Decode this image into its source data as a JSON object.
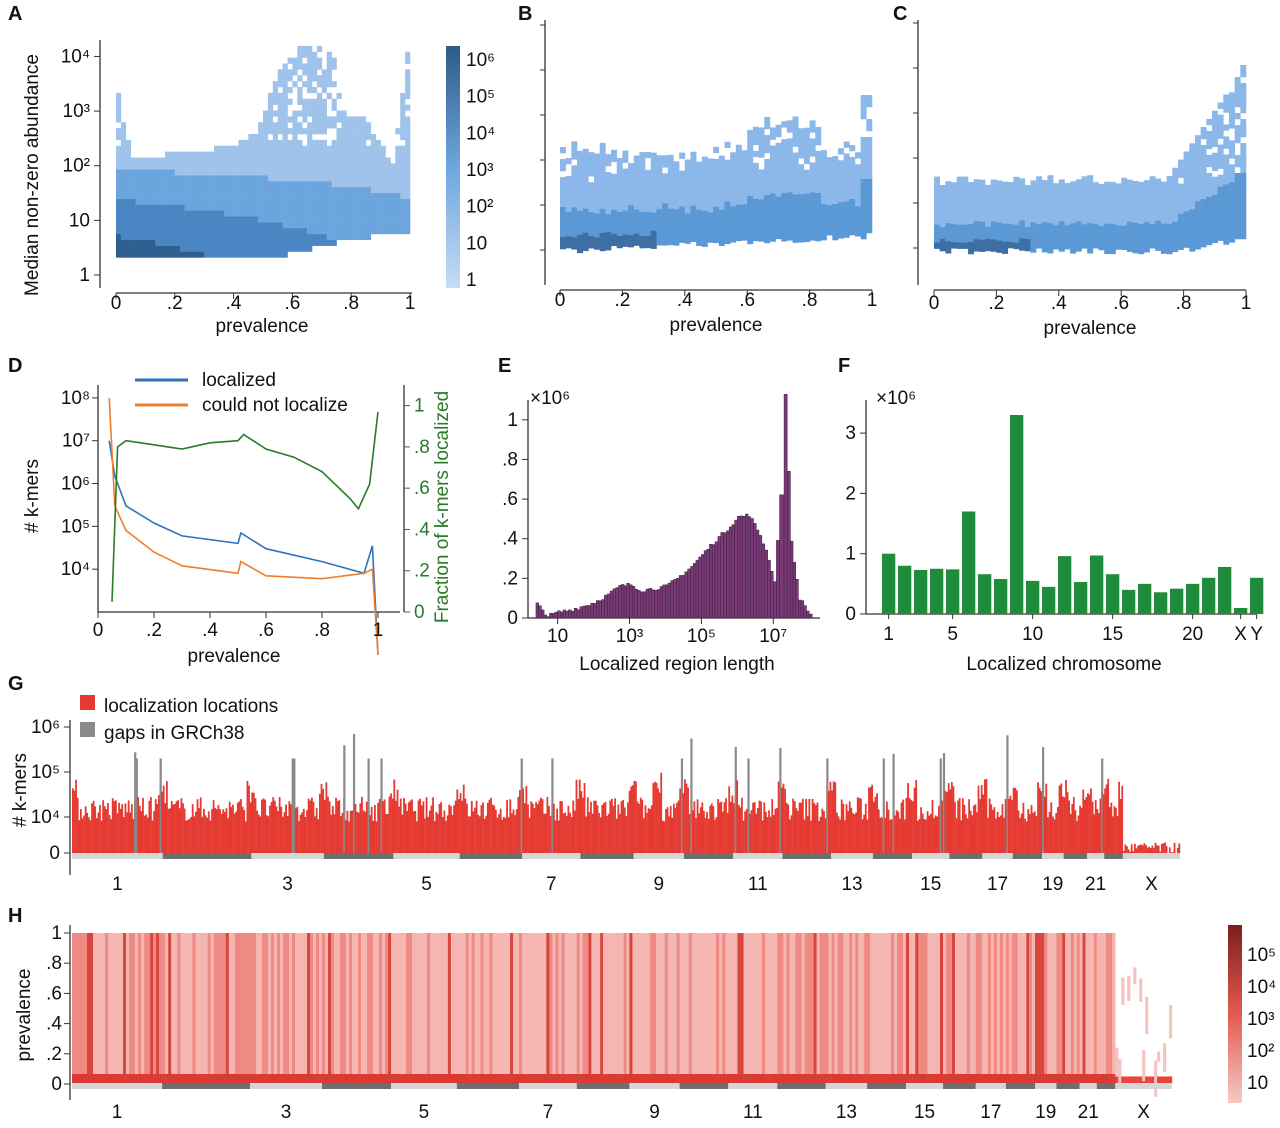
{
  "panels": {
    "A": "A",
    "B": "B",
    "C": "C",
    "D": "D",
    "E": "E",
    "F": "F",
    "G": "G",
    "H": "H"
  },
  "colors": {
    "blue_light": "#a9c8ec",
    "blue_mid": "#4f93d6",
    "blue_dark": "#2e5d8c",
    "localized": "#2f73b8",
    "could_not_localize": "#ef7f2c",
    "fraction": "#2a7a2a",
    "histogram": "#7a3a78",
    "chromosome_bar": "#1f8b3b",
    "red": "#e53a31",
    "gap_gray": "#8a8a8a"
  },
  "chart_data": [
    {
      "panel": "A",
      "type": "heatmap",
      "xlabel": "prevalence",
      "ylabel": "Median non-zero abundance",
      "xlim": [
        0,
        1
      ],
      "ylim": [
        1,
        20000
      ],
      "yscale": "log",
      "xticks": [
        "0",
        ".2",
        ".4",
        ".6",
        ".8",
        "1"
      ],
      "yticks": [
        "1",
        "10",
        "10²",
        "10³",
        "10⁴"
      ],
      "upper_envelope": [
        [
          0,
          2000
        ],
        [
          0.05,
          120
        ],
        [
          0.2,
          150
        ],
        [
          0.4,
          200
        ],
        [
          0.5,
          600
        ],
        [
          0.52,
          2000
        ],
        [
          0.58,
          8000
        ],
        [
          0.62,
          12000
        ],
        [
          0.68,
          14000
        ],
        [
          0.75,
          9000
        ],
        [
          0.78,
          800
        ],
        [
          0.85,
          700
        ],
        [
          0.95,
          100
        ],
        [
          1,
          10000
        ]
      ],
      "colorbar": {
        "ticks": [
          "10⁶",
          "10⁵",
          "10⁴",
          "10³",
          "10²",
          "10",
          "1"
        ],
        "scale": "log"
      }
    },
    {
      "panel": "B",
      "type": "heatmap",
      "xlabel": "prevalence",
      "xlim": [
        0,
        1
      ],
      "yscale": "log",
      "xticks": [
        "0",
        ".2",
        ".4",
        ".6",
        ".8",
        "1"
      ]
    },
    {
      "panel": "C",
      "type": "heatmap",
      "xlabel": "prevalence",
      "xlim": [
        0,
        1
      ],
      "yscale": "log",
      "xticks": [
        "0",
        ".2",
        ".4",
        ".6",
        ".8",
        "1"
      ]
    },
    {
      "panel": "D",
      "type": "line",
      "xlabel": "prevalence",
      "ylabel": "# k-mers",
      "ylabel2": "Fraction of k-mers localized",
      "yscale": "log",
      "ylim": [
        1000,
        200000000
      ],
      "y2lim": [
        0,
        1.1
      ],
      "xticks": [
        "0",
        ".2",
        ".4",
        ".6",
        ".8",
        "1"
      ],
      "yticks": [
        "10⁴",
        "10⁵",
        "10⁶",
        "10⁷",
        "10⁸"
      ],
      "y2ticks": [
        "0",
        ".2",
        ".4",
        ".6",
        ".8",
        "1"
      ],
      "legend_placement": "top",
      "series": [
        {
          "name": "localized",
          "x": [
            0.04,
            0.06,
            0.1,
            0.2,
            0.3,
            0.5,
            0.51,
            0.6,
            0.8,
            0.95,
            0.98,
            1.0
          ],
          "y": [
            10000000,
            1500000,
            300000,
            120000,
            60000,
            40000,
            70000,
            30000,
            15000,
            8000,
            35000,
            100
          ]
        },
        {
          "name": "could not localize",
          "x": [
            0.04,
            0.06,
            0.1,
            0.2,
            0.3,
            0.5,
            0.51,
            0.6,
            0.8,
            0.95,
            0.98,
            1.0
          ],
          "y": [
            100000000,
            300000,
            80000,
            25000,
            12000,
            8000,
            15000,
            7000,
            6000,
            8000,
            10000,
            100
          ]
        },
        {
          "name": "fraction localized",
          "axis": "right",
          "x": [
            0.05,
            0.07,
            0.1,
            0.2,
            0.3,
            0.4,
            0.5,
            0.52,
            0.6,
            0.7,
            0.8,
            0.9,
            0.93,
            0.97,
            1.0
          ],
          "y": [
            0.05,
            0.8,
            0.83,
            0.81,
            0.79,
            0.82,
            0.83,
            0.86,
            0.79,
            0.75,
            0.68,
            0.55,
            0.5,
            0.62,
            0.97
          ]
        }
      ]
    },
    {
      "panel": "E",
      "type": "bar",
      "xlabel": "Localized region length",
      "multiplier": "×10⁶",
      "xscale": "log",
      "xlim": [
        1.5,
        200000000
      ],
      "ylim": [
        0,
        1.1
      ],
      "xticks": [
        "10",
        "10³",
        "10⁵",
        "10⁷"
      ],
      "yticks": [
        "0",
        ".2",
        ".4",
        ".6",
        ".8",
        "1"
      ],
      "bins": [
        [
          2.5,
          0.07
        ],
        [
          5,
          0.01
        ],
        [
          10,
          0.03
        ],
        [
          20,
          0.04
        ],
        [
          50,
          0.06
        ],
        [
          100,
          0.08
        ],
        [
          200,
          0.11
        ],
        [
          500,
          0.16
        ],
        [
          1000,
          0.17
        ],
        [
          2000,
          0.14
        ],
        [
          5000,
          0.15
        ],
        [
          10000,
          0.16
        ],
        [
          20000,
          0.2
        ],
        [
          50000,
          0.26
        ],
        [
          100000,
          0.32
        ],
        [
          200000,
          0.38
        ],
        [
          500000,
          0.45
        ],
        [
          1000000,
          0.51
        ],
        [
          2000000,
          0.52
        ],
        [
          4000000,
          0.42
        ],
        [
          7000000,
          0.3
        ],
        [
          10000000,
          0.18
        ],
        [
          15000000,
          0.62
        ],
        [
          20000000,
          1.12
        ],
        [
          30000000,
          0.38
        ],
        [
          50000000,
          0.1
        ],
        [
          100000000,
          0.02
        ]
      ]
    },
    {
      "panel": "F",
      "type": "bar",
      "xlabel": "Localized chromosome",
      "multiplier": "×10⁶",
      "ylim": [
        0,
        3.3
      ],
      "categories": [
        "1",
        "2",
        "3",
        "4",
        "5",
        "6",
        "7",
        "8",
        "9",
        "10",
        "11",
        "12",
        "13",
        "14",
        "15",
        "16",
        "17",
        "18",
        "19",
        "20",
        "21",
        "22",
        "X",
        "Y"
      ],
      "xticks": [
        "1",
        "5",
        "10",
        "15",
        "20",
        "X",
        "Y"
      ],
      "yticks": [
        "0",
        "1",
        "2",
        "3"
      ],
      "values": [
        1.0,
        0.8,
        0.73,
        0.75,
        0.74,
        1.7,
        0.66,
        0.58,
        3.3,
        0.55,
        0.45,
        0.96,
        0.53,
        0.97,
        0.66,
        0.4,
        0.5,
        0.36,
        0.42,
        0.5,
        0.6,
        0.78,
        0.1,
        0.6
      ]
    },
    {
      "panel": "G",
      "type": "bar",
      "ylabel": "# k-mers",
      "yscale": "log",
      "yticks": [
        "0",
        "10⁴",
        "10⁵",
        "10⁶"
      ],
      "chromosome_labels": [
        "1",
        "3",
        "5",
        "7",
        "9",
        "11",
        "13",
        "15",
        "17",
        "19",
        "21",
        "X"
      ],
      "legend": [
        "localization locations",
        "gaps in GRCh38"
      ],
      "legend_placement": "top-left",
      "chromosome_sizes_mb": [
        248,
        242,
        198,
        190,
        181,
        171,
        159,
        145,
        138,
        134,
        135,
        133,
        114,
        107,
        102,
        90,
        83,
        80,
        59,
        64,
        47,
        51,
        156
      ]
    },
    {
      "panel": "H",
      "type": "heatmap",
      "ylabel": "prevalence",
      "yticks": [
        "0",
        ".2",
        ".4",
        ".6",
        ".8",
        "1"
      ],
      "chromosome_labels": [
        "1",
        "3",
        "5",
        "7",
        "9",
        "11",
        "13",
        "15",
        "17",
        "19",
        "21",
        "X"
      ],
      "colorbar": {
        "ticks": [
          "10⁵",
          "10⁴",
          "10³",
          "10²",
          "10"
        ],
        "scale": "log"
      }
    }
  ]
}
